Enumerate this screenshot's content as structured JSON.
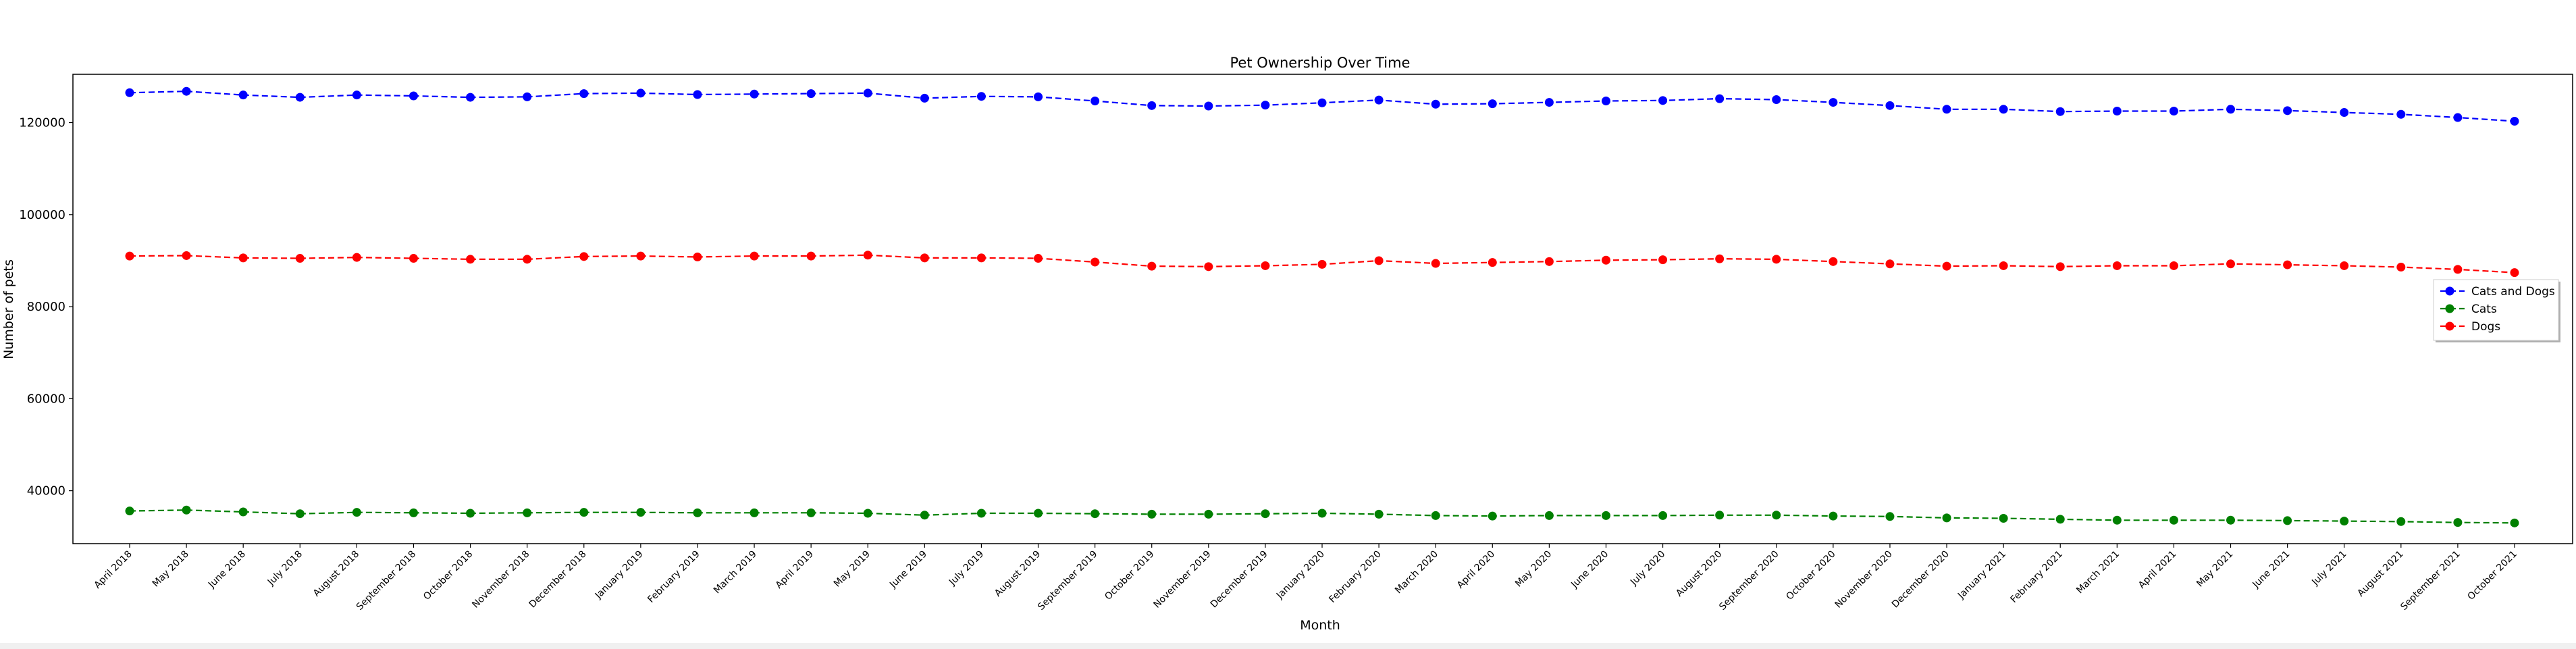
{
  "chart_data": {
    "type": "line",
    "title": "Pet Ownership Over Time",
    "xlabel": "Month",
    "ylabel": "Number of pets",
    "ylim": [
      28500,
      130500
    ],
    "yticks": [
      40000,
      60000,
      80000,
      100000,
      120000
    ],
    "ytick_labels": [
      "40000",
      "60000",
      "80000",
      "100000",
      "120000"
    ],
    "grid": false,
    "legend_position": "center-right",
    "categories": [
      "April 2018",
      "May 2018",
      "June 2018",
      "July 2018",
      "August 2018",
      "September 2018",
      "October 2018",
      "November 2018",
      "December 2018",
      "January 2019",
      "February 2019",
      "March 2019",
      "April 2019",
      "May 2019",
      "June 2019",
      "July 2019",
      "August 2019",
      "September 2019",
      "October 2019",
      "November 2019",
      "December 2019",
      "January 2020",
      "February 2020",
      "March 2020",
      "April 2020",
      "May 2020",
      "June 2020",
      "July 2020",
      "August 2020",
      "September 2020",
      "October 2020",
      "November 2020",
      "December 2020",
      "January 2021",
      "February 2021",
      "March 2021",
      "April 2021",
      "May 2021",
      "June 2021",
      "July 2021",
      "August 2021",
      "September 2021",
      "October 2021"
    ],
    "series": [
      {
        "name": "Cats and Dogs",
        "color": "#0000ff",
        "values": [
          126500,
          126800,
          126000,
          125500,
          126000,
          125800,
          125500,
          125600,
          126300,
          126400,
          126100,
          126200,
          126300,
          126400,
          125300,
          125700,
          125600,
          124700,
          123700,
          123600,
          123800,
          124300,
          124900,
          124000,
          124100,
          124400,
          124700,
          124800,
          125200,
          125000,
          124400,
          123700,
          122900,
          122900,
          122400,
          122500,
          122500,
          122900,
          122600,
          122200,
          121800,
          121100,
          120300
        ]
      },
      {
        "name": "Cats",
        "color": "#008000",
        "values": [
          35600,
          35800,
          35400,
          35000,
          35300,
          35200,
          35100,
          35200,
          35300,
          35300,
          35200,
          35200,
          35200,
          35100,
          34700,
          35100,
          35100,
          35000,
          34900,
          34900,
          35000,
          35100,
          34900,
          34600,
          34500,
          34600,
          34600,
          34600,
          34700,
          34700,
          34500,
          34400,
          34100,
          34000,
          33800,
          33600,
          33600,
          33600,
          33500,
          33400,
          33300,
          33100,
          33000
        ]
      },
      {
        "name": "Dogs",
        "color": "#ff0000",
        "values": [
          91000,
          91100,
          90600,
          90500,
          90700,
          90500,
          90300,
          90300,
          90900,
          91000,
          90800,
          91000,
          91000,
          91200,
          90600,
          90600,
          90500,
          89700,
          88800,
          88700,
          88900,
          89200,
          90000,
          89400,
          89600,
          89800,
          90100,
          90200,
          90400,
          90300,
          89800,
          89300,
          88800,
          88900,
          88700,
          88900,
          88900,
          89300,
          89100,
          88900,
          88600,
          88100,
          87400
        ]
      }
    ]
  }
}
